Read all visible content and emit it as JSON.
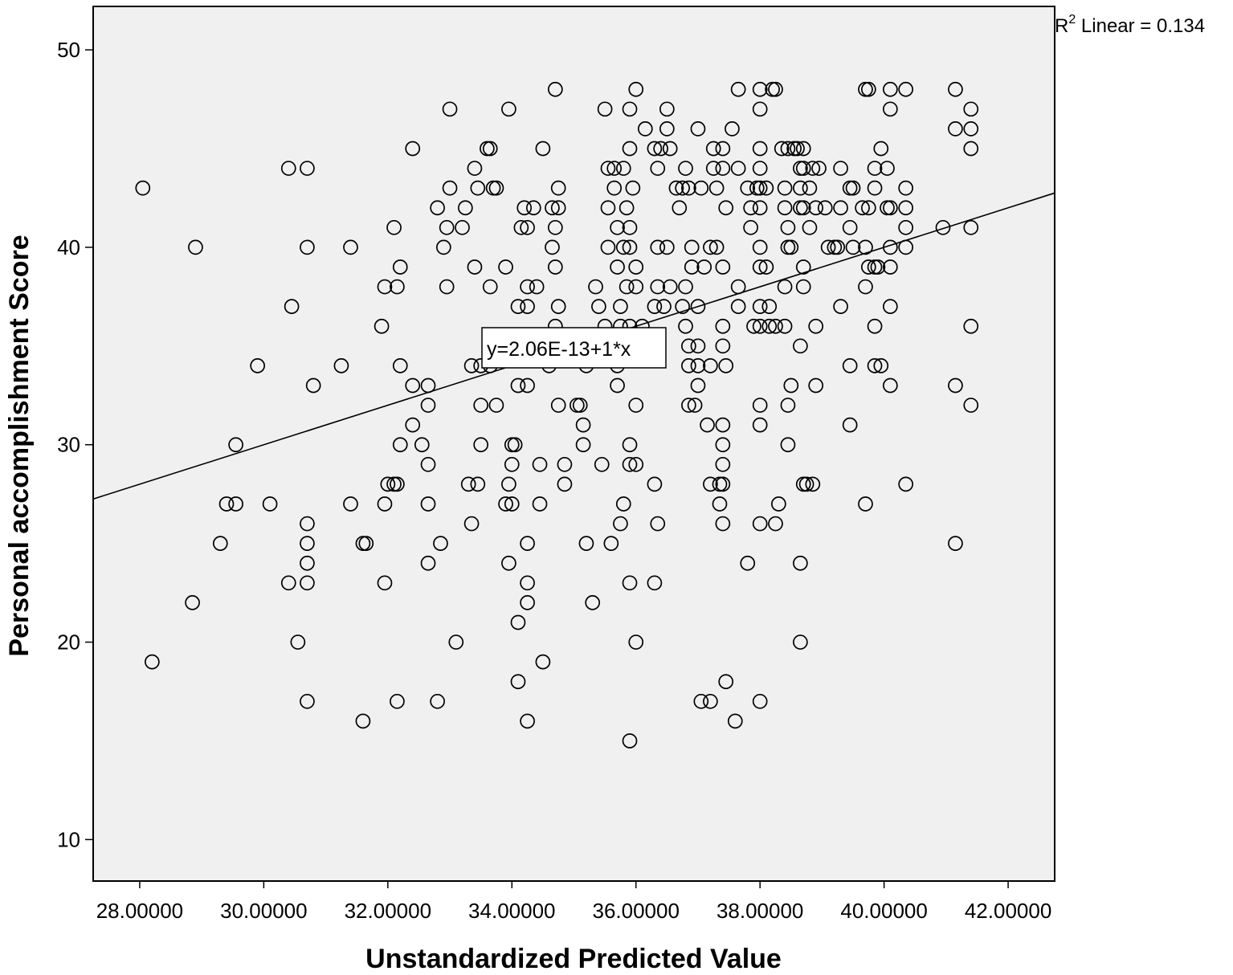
{
  "chart_data": {
    "type": "scatter",
    "xlabel": "Unstandardized Predicted Value",
    "ylabel": "Personal accomplishment Score",
    "xlim": [
      27.25,
      42.75
    ],
    "ylim": [
      7.9,
      52.2
    ],
    "x_ticks": [
      28,
      30,
      32,
      34,
      36,
      38,
      40,
      42
    ],
    "x_tick_labels": [
      "28.00000",
      "30.00000",
      "32.00000",
      "34.00000",
      "36.00000",
      "38.00000",
      "40.00000",
      "42.00000"
    ],
    "y_ticks": [
      10,
      20,
      30,
      40,
      50
    ],
    "y_tick_labels": [
      "10",
      "20",
      "30",
      "40",
      "50"
    ],
    "fit_line": {
      "intercept": 0,
      "slope": 1,
      "equation": "y=2.06E-13+1*x"
    },
    "r2_label": {
      "prefix": "R",
      "superscript": "2",
      "text": " Linear = 0.134"
    },
    "marker": "open-circle",
    "grid": false,
    "colors": {
      "plot_background": "#f0f0f0",
      "marker_stroke": "#000000",
      "line": "#000000"
    },
    "points": [
      [
        28.05,
        43
      ],
      [
        28.2,
        19
      ],
      [
        28.9,
        40
      ],
      [
        28.85,
        22
      ],
      [
        29.3,
        25
      ],
      [
        29.4,
        27
      ],
      [
        29.55,
        27
      ],
      [
        29.55,
        30
      ],
      [
        29.9,
        34
      ],
      [
        30.1,
        27
      ],
      [
        30.4,
        44
      ],
      [
        30.45,
        37
      ],
      [
        30.4,
        23
      ],
      [
        30.55,
        20
      ],
      [
        30.7,
        44
      ],
      [
        30.7,
        40
      ],
      [
        30.7,
        26
      ],
      [
        30.7,
        25
      ],
      [
        30.7,
        24
      ],
      [
        30.7,
        23
      ],
      [
        30.7,
        17
      ],
      [
        30.8,
        33
      ],
      [
        31.25,
        34
      ],
      [
        31.4,
        40
      ],
      [
        31.4,
        27
      ],
      [
        31.6,
        25
      ],
      [
        31.65,
        25
      ],
      [
        31.6,
        16
      ],
      [
        31.9,
        36
      ],
      [
        31.95,
        38
      ],
      [
        31.95,
        27
      ],
      [
        31.95,
        23
      ],
      [
        32.0,
        28
      ],
      [
        32.1,
        28
      ],
      [
        32.15,
        28
      ],
      [
        32.1,
        41
      ],
      [
        32.15,
        38
      ],
      [
        32.2,
        39
      ],
      [
        32.2,
        34
      ],
      [
        32.2,
        30
      ],
      [
        32.15,
        17
      ],
      [
        32.4,
        45
      ],
      [
        32.4,
        33
      ],
      [
        32.4,
        31
      ],
      [
        32.55,
        30
      ],
      [
        32.65,
        33
      ],
      [
        32.65,
        32
      ],
      [
        32.65,
        29
      ],
      [
        32.65,
        27
      ],
      [
        32.65,
        24
      ],
      [
        32.8,
        42
      ],
      [
        32.8,
        17
      ],
      [
        32.85,
        25
      ],
      [
        32.9,
        40
      ],
      [
        32.95,
        41
      ],
      [
        32.95,
        38
      ],
      [
        33.0,
        47
      ],
      [
        33.0,
        43
      ],
      [
        33.1,
        20
      ],
      [
        33.2,
        41
      ],
      [
        33.25,
        42
      ],
      [
        33.3,
        28
      ],
      [
        33.35,
        26
      ],
      [
        33.35,
        34
      ],
      [
        33.4,
        39
      ],
      [
        33.4,
        44
      ],
      [
        33.45,
        43
      ],
      [
        33.45,
        28
      ],
      [
        33.5,
        32
      ],
      [
        33.5,
        30
      ],
      [
        33.5,
        34
      ],
      [
        33.6,
        45
      ],
      [
        33.65,
        45
      ],
      [
        33.65,
        38
      ],
      [
        33.65,
        34
      ],
      [
        33.7,
        43
      ],
      [
        33.75,
        43
      ],
      [
        33.75,
        32
      ],
      [
        33.9,
        39
      ],
      [
        33.9,
        27
      ],
      [
        33.95,
        47
      ],
      [
        33.95,
        28
      ],
      [
        33.95,
        24
      ],
      [
        34.0,
        30
      ],
      [
        34.0,
        29
      ],
      [
        34.0,
        27
      ],
      [
        34.05,
        30
      ],
      [
        34.1,
        37
      ],
      [
        34.1,
        33
      ],
      [
        34.1,
        21
      ],
      [
        34.1,
        18
      ],
      [
        34.15,
        41
      ],
      [
        34.2,
        42
      ],
      [
        34.25,
        41
      ],
      [
        34.25,
        38
      ],
      [
        34.25,
        37
      ],
      [
        34.25,
        33
      ],
      [
        34.25,
        25
      ],
      [
        34.25,
        23
      ],
      [
        34.25,
        22
      ],
      [
        34.25,
        16
      ],
      [
        34.35,
        42
      ],
      [
        34.4,
        38
      ],
      [
        34.45,
        29
      ],
      [
        34.45,
        27
      ],
      [
        34.5,
        45
      ],
      [
        34.5,
        19
      ],
      [
        34.6,
        34
      ],
      [
        34.65,
        42
      ],
      [
        34.65,
        40
      ],
      [
        34.7,
        48
      ],
      [
        34.7,
        41
      ],
      [
        34.7,
        39
      ],
      [
        34.7,
        36
      ],
      [
        34.75,
        43
      ],
      [
        34.75,
        42
      ],
      [
        34.75,
        37
      ],
      [
        34.75,
        32
      ],
      [
        34.85,
        29
      ],
      [
        34.85,
        28
      ],
      [
        35.05,
        32
      ],
      [
        35.1,
        32
      ],
      [
        35.15,
        31
      ],
      [
        35.15,
        30
      ],
      [
        35.2,
        25
      ],
      [
        35.2,
        34
      ],
      [
        35.3,
        22
      ],
      [
        35.35,
        38
      ],
      [
        35.4,
        37
      ],
      [
        35.45,
        29
      ],
      [
        35.5,
        47
      ],
      [
        35.5,
        36
      ],
      [
        35.55,
        44
      ],
      [
        35.55,
        42
      ],
      [
        35.55,
        40
      ],
      [
        35.6,
        25
      ],
      [
        35.65,
        44
      ],
      [
        35.65,
        43
      ],
      [
        35.7,
        41
      ],
      [
        35.7,
        39
      ],
      [
        35.7,
        34
      ],
      [
        35.7,
        33
      ],
      [
        35.75,
        37
      ],
      [
        35.75,
        26
      ],
      [
        35.75,
        36
      ],
      [
        35.8,
        44
      ],
      [
        35.8,
        40
      ],
      [
        35.8,
        27
      ],
      [
        35.85,
        42
      ],
      [
        35.85,
        38
      ],
      [
        35.9,
        47
      ],
      [
        35.9,
        45
      ],
      [
        35.9,
        41
      ],
      [
        35.9,
        40
      ],
      [
        35.9,
        36
      ],
      [
        35.9,
        30
      ],
      [
        35.9,
        29
      ],
      [
        35.9,
        23
      ],
      [
        35.9,
        15
      ],
      [
        35.95,
        43
      ],
      [
        36.0,
        48
      ],
      [
        36.0,
        39
      ],
      [
        36.0,
        38
      ],
      [
        36.0,
        32
      ],
      [
        36.0,
        29
      ],
      [
        36.0,
        20
      ],
      [
        36.1,
        36
      ],
      [
        36.15,
        46
      ],
      [
        36.3,
        45
      ],
      [
        36.3,
        37
      ],
      [
        36.3,
        28
      ],
      [
        36.3,
        23
      ],
      [
        36.35,
        44
      ],
      [
        36.35,
        40
      ],
      [
        36.35,
        38
      ],
      [
        36.35,
        26
      ],
      [
        36.4,
        45
      ],
      [
        36.45,
        37
      ],
      [
        36.5,
        47
      ],
      [
        36.5,
        46
      ],
      [
        36.5,
        40
      ],
      [
        36.55,
        45
      ],
      [
        36.55,
        38
      ],
      [
        36.65,
        43
      ],
      [
        36.7,
        42
      ],
      [
        36.75,
        43
      ],
      [
        36.75,
        37
      ],
      [
        36.8,
        44
      ],
      [
        36.8,
        38
      ],
      [
        36.8,
        36
      ],
      [
        36.85,
        43
      ],
      [
        36.85,
        35
      ],
      [
        36.85,
        34
      ],
      [
        36.85,
        32
      ],
      [
        36.9,
        40
      ],
      [
        36.9,
        39
      ],
      [
        36.95,
        32
      ],
      [
        37.0,
        46
      ],
      [
        37.0,
        35
      ],
      [
        37.0,
        34
      ],
      [
        37.0,
        33
      ],
      [
        37.0,
        37
      ],
      [
        37.05,
        43
      ],
      [
        37.05,
        17
      ],
      [
        37.1,
        39
      ],
      [
        37.15,
        31
      ],
      [
        37.2,
        40
      ],
      [
        37.2,
        34
      ],
      [
        37.2,
        28
      ],
      [
        37.2,
        17
      ],
      [
        37.25,
        45
      ],
      [
        37.25,
        44
      ],
      [
        37.3,
        43
      ],
      [
        37.3,
        40
      ],
      [
        37.35,
        28
      ],
      [
        37.35,
        27
      ],
      [
        37.4,
        45
      ],
      [
        37.4,
        44
      ],
      [
        37.4,
        39
      ],
      [
        37.4,
        36
      ],
      [
        37.4,
        35
      ],
      [
        37.4,
        31
      ],
      [
        37.4,
        30
      ],
      [
        37.4,
        29
      ],
      [
        37.4,
        28
      ],
      [
        37.4,
        26
      ],
      [
        37.45,
        42
      ],
      [
        37.45,
        34
      ],
      [
        37.45,
        18
      ],
      [
        37.55,
        46
      ],
      [
        37.6,
        16
      ],
      [
        37.65,
        48
      ],
      [
        37.65,
        44
      ],
      [
        37.65,
        38
      ],
      [
        37.65,
        37
      ],
      [
        37.8,
        43
      ],
      [
        37.8,
        24
      ],
      [
        37.85,
        42
      ],
      [
        37.85,
        41
      ],
      [
        37.9,
        36
      ],
      [
        37.95,
        43
      ],
      [
        38.0,
        48
      ],
      [
        38.0,
        47
      ],
      [
        38.0,
        45
      ],
      [
        38.0,
        44
      ],
      [
        38.0,
        43
      ],
      [
        38.0,
        42
      ],
      [
        38.0,
        40
      ],
      [
        38.0,
        39
      ],
      [
        38.0,
        37
      ],
      [
        38.0,
        36
      ],
      [
        38.0,
        32
      ],
      [
        38.0,
        31
      ],
      [
        38.0,
        26
      ],
      [
        38.0,
        17
      ],
      [
        38.1,
        43
      ],
      [
        38.1,
        39
      ],
      [
        38.15,
        37
      ],
      [
        38.15,
        36
      ],
      [
        38.2,
        48
      ],
      [
        38.25,
        48
      ],
      [
        38.25,
        36
      ],
      [
        38.25,
        26
      ],
      [
        38.3,
        27
      ],
      [
        38.35,
        45
      ],
      [
        38.4,
        43
      ],
      [
        38.4,
        42
      ],
      [
        38.4,
        38
      ],
      [
        38.4,
        36
      ],
      [
        38.45,
        45
      ],
      [
        38.45,
        41
      ],
      [
        38.45,
        40
      ],
      [
        38.45,
        30
      ],
      [
        38.45,
        32
      ],
      [
        38.5,
        40
      ],
      [
        38.5,
        33
      ],
      [
        38.55,
        45
      ],
      [
        38.6,
        45
      ],
      [
        38.65,
        44
      ],
      [
        38.65,
        42
      ],
      [
        38.65,
        43
      ],
      [
        38.65,
        35
      ],
      [
        38.65,
        24
      ],
      [
        38.65,
        20
      ],
      [
        38.7,
        45
      ],
      [
        38.7,
        44
      ],
      [
        38.7,
        42
      ],
      [
        38.7,
        39
      ],
      [
        38.7,
        38
      ],
      [
        38.7,
        28
      ],
      [
        38.75,
        28
      ],
      [
        38.8,
        43
      ],
      [
        38.8,
        41
      ],
      [
        38.85,
        44
      ],
      [
        38.85,
        28
      ],
      [
        38.9,
        42
      ],
      [
        38.9,
        36
      ],
      [
        38.9,
        33
      ],
      [
        38.95,
        44
      ],
      [
        39.05,
        42
      ],
      [
        39.1,
        40
      ],
      [
        39.2,
        40
      ],
      [
        39.25,
        40
      ],
      [
        39.3,
        44
      ],
      [
        39.3,
        42
      ],
      [
        39.3,
        37
      ],
      [
        39.45,
        43
      ],
      [
        39.45,
        41
      ],
      [
        39.45,
        34
      ],
      [
        39.45,
        31
      ],
      [
        39.5,
        43
      ],
      [
        39.5,
        40
      ],
      [
        39.65,
        42
      ],
      [
        39.7,
        48
      ],
      [
        39.7,
        40
      ],
      [
        39.7,
        38
      ],
      [
        39.7,
        27
      ],
      [
        39.75,
        48
      ],
      [
        39.75,
        42
      ],
      [
        39.75,
        39
      ],
      [
        39.85,
        44
      ],
      [
        39.85,
        43
      ],
      [
        39.85,
        39
      ],
      [
        39.85,
        36
      ],
      [
        39.85,
        34
      ],
      [
        39.9,
        39
      ],
      [
        39.95,
        45
      ],
      [
        39.95,
        34
      ],
      [
        40.05,
        42
      ],
      [
        40.05,
        44
      ],
      [
        40.1,
        48
      ],
      [
        40.1,
        47
      ],
      [
        40.1,
        42
      ],
      [
        40.1,
        40
      ],
      [
        40.1,
        39
      ],
      [
        40.1,
        37
      ],
      [
        40.1,
        33
      ],
      [
        40.35,
        48
      ],
      [
        40.35,
        43
      ],
      [
        40.35,
        42
      ],
      [
        40.35,
        41
      ],
      [
        40.35,
        40
      ],
      [
        40.35,
        28
      ],
      [
        40.95,
        41
      ],
      [
        41.15,
        48
      ],
      [
        41.15,
        46
      ],
      [
        41.15,
        33
      ],
      [
        41.15,
        25
      ],
      [
        41.4,
        47
      ],
      [
        41.4,
        46
      ],
      [
        41.4,
        45
      ],
      [
        41.4,
        41
      ],
      [
        41.4,
        36
      ],
      [
        41.4,
        32
      ]
    ]
  }
}
